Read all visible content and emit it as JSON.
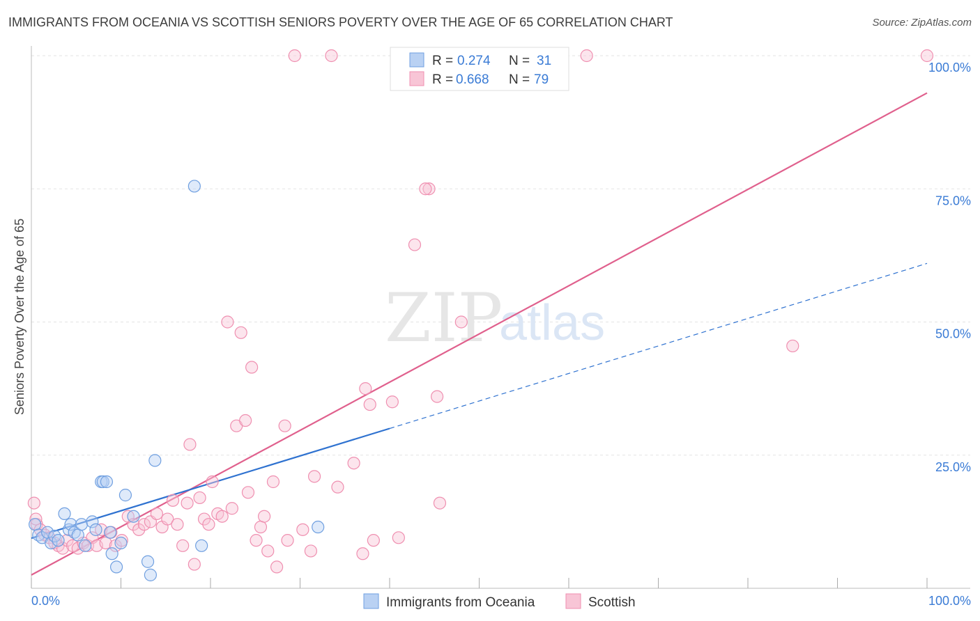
{
  "header": {
    "title": "IMMIGRANTS FROM OCEANIA VS SCOTTISH SENIORS POVERTY OVER THE AGE OF 65 CORRELATION CHART",
    "source": "Source: ZipAtlas.com"
  },
  "watermark": {
    "zip": "ZIP",
    "atlas": "atlas"
  },
  "legend": {
    "rows": [
      {
        "r_label": "R =",
        "r_value": "0.274",
        "n_label": "N =",
        "n_value": "31"
      },
      {
        "r_label": "R =",
        "r_value": "0.668",
        "n_label": "N =",
        "n_value": "79"
      }
    ]
  },
  "chart_data": {
    "type": "scatter",
    "title": "IMMIGRANTS FROM OCEANIA VS SCOTTISH SENIORS POVERTY OVER THE AGE OF 65 CORRELATION CHART",
    "xlabel": "",
    "ylabel": "Seniors Poverty Over the Age of 65",
    "xlim": [
      0,
      100
    ],
    "ylim": [
      0,
      100
    ],
    "x_tick_labels": [
      "0.0%",
      "100.0%"
    ],
    "y_tick_values": [
      25,
      50,
      75,
      100
    ],
    "y_tick_labels": [
      "25.0%",
      "50.0%",
      "75.0%",
      "100.0%"
    ],
    "grid": true,
    "legend_position": "bottom",
    "series": [
      {
        "name": "Immigrants from Oceania",
        "color": "#6f9fe0",
        "line_color": "#2f72d0",
        "r": 0.274,
        "n": 31,
        "trend": {
          "x0": 0,
          "y0": 9.4,
          "x1": 40,
          "y1": 30.0,
          "dashed_to_x": 100,
          "dashed_to_y": 61.0
        },
        "points": [
          [
            0.4,
            12.0
          ],
          [
            0.8,
            10.0
          ],
          [
            1.2,
            9.5
          ],
          [
            1.8,
            10.5
          ],
          [
            2.2,
            8.5
          ],
          [
            2.6,
            9.8
          ],
          [
            3.0,
            9.0
          ],
          [
            3.7,
            14.0
          ],
          [
            4.2,
            11.0
          ],
          [
            4.4,
            12.0
          ],
          [
            4.8,
            10.5
          ],
          [
            5.2,
            10.0
          ],
          [
            5.6,
            12.0
          ],
          [
            6.0,
            8.0
          ],
          [
            6.8,
            12.5
          ],
          [
            7.2,
            11.0
          ],
          [
            7.8,
            20.0
          ],
          [
            8.0,
            20.0
          ],
          [
            8.4,
            20.0
          ],
          [
            8.8,
            10.5
          ],
          [
            9.0,
            6.5
          ],
          [
            9.5,
            4.0
          ],
          [
            10.0,
            8.5
          ],
          [
            10.5,
            17.5
          ],
          [
            11.4,
            13.5
          ],
          [
            13.0,
            5.0
          ],
          [
            13.3,
            2.5
          ],
          [
            13.8,
            24.0
          ],
          [
            18.2,
            75.5
          ],
          [
            19.0,
            8.0
          ],
          [
            32.0,
            11.5
          ]
        ]
      },
      {
        "name": "Scottish",
        "color": "#ef8fb0",
        "line_color": "#e0608d",
        "r": 0.668,
        "n": 79,
        "trend": {
          "x0": 0,
          "y0": 2.5,
          "x1": 100,
          "y1": 93.0
        },
        "points": [
          [
            0.3,
            16.0
          ],
          [
            0.6,
            12.0
          ],
          [
            1.0,
            11.0
          ],
          [
            1.5,
            10.0
          ],
          [
            2.0,
            9.5
          ],
          [
            2.6,
            8.5
          ],
          [
            3.0,
            8.0
          ],
          [
            3.5,
            7.5
          ],
          [
            4.0,
            9.0
          ],
          [
            4.6,
            8.0
          ],
          [
            5.2,
            7.5
          ],
          [
            5.8,
            8.5
          ],
          [
            6.3,
            8.0
          ],
          [
            6.8,
            9.5
          ],
          [
            7.3,
            8.0
          ],
          [
            7.8,
            11.0
          ],
          [
            8.3,
            8.5
          ],
          [
            8.9,
            10.5
          ],
          [
            9.4,
            8.0
          ],
          [
            10.1,
            9.0
          ],
          [
            10.8,
            13.5
          ],
          [
            11.4,
            12.0
          ],
          [
            12.0,
            11.0
          ],
          [
            12.6,
            12.0
          ],
          [
            13.3,
            12.5
          ],
          [
            14.0,
            14.0
          ],
          [
            14.6,
            11.5
          ],
          [
            15.2,
            13.0
          ],
          [
            15.8,
            16.5
          ],
          [
            16.3,
            12.0
          ],
          [
            16.9,
            8.0
          ],
          [
            17.4,
            16.0
          ],
          [
            17.7,
            27.0
          ],
          [
            18.2,
            4.5
          ],
          [
            18.8,
            17.0
          ],
          [
            19.3,
            13.0
          ],
          [
            19.8,
            12.0
          ],
          [
            20.2,
            20.0
          ],
          [
            20.8,
            14.0
          ],
          [
            21.3,
            13.5
          ],
          [
            21.9,
            50.0
          ],
          [
            22.4,
            15.0
          ],
          [
            22.9,
            30.5
          ],
          [
            23.4,
            48.0
          ],
          [
            23.9,
            31.5
          ],
          [
            24.2,
            18.0
          ],
          [
            24.6,
            41.5
          ],
          [
            25.1,
            9.0
          ],
          [
            25.6,
            11.5
          ],
          [
            26.0,
            13.5
          ],
          [
            26.4,
            7.0
          ],
          [
            27.0,
            20.0
          ],
          [
            27.4,
            4.0
          ],
          [
            28.3,
            30.5
          ],
          [
            28.6,
            9.0
          ],
          [
            29.4,
            100.0
          ],
          [
            30.3,
            11.0
          ],
          [
            31.2,
            7.0
          ],
          [
            31.6,
            21.0
          ],
          [
            33.5,
            100.0
          ],
          [
            34.2,
            19.0
          ],
          [
            36.0,
            23.5
          ],
          [
            37.0,
            6.5
          ],
          [
            37.3,
            37.5
          ],
          [
            37.8,
            34.5
          ],
          [
            38.2,
            9.0
          ],
          [
            40.3,
            35.0
          ],
          [
            41.0,
            9.5
          ],
          [
            42.8,
            64.5
          ],
          [
            44.4,
            75.0
          ],
          [
            45.3,
            36.0
          ],
          [
            45.6,
            16.0
          ],
          [
            48.0,
            50.0
          ],
          [
            59.0,
            100.0
          ],
          [
            62.0,
            100.0
          ],
          [
            85.0,
            45.5
          ],
          [
            100.0,
            100.0
          ],
          [
            44.0,
            75.0
          ],
          [
            0.5,
            13.0
          ]
        ]
      }
    ]
  }
}
